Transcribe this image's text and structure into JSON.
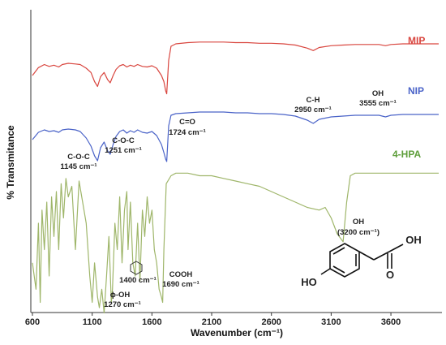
{
  "chart_data": {
    "type": "line",
    "xlabel": "Wavenumber (cm⁻¹)",
    "ylabel": "% Transmitance",
    "xlim": [
      600,
      4000
    ],
    "xticks": [
      600,
      1100,
      1600,
      2100,
      2600,
      3100,
      3600
    ],
    "grid": false,
    "series": [
      {
        "name": "MIP",
        "color": "#d9463f",
        "x": [
          600,
          650,
          700,
          740,
          780,
          820,
          850,
          900,
          960,
          1000,
          1050,
          1090,
          1120,
          1145,
          1170,
          1200,
          1230,
          1251,
          1275,
          1300,
          1330,
          1360,
          1390,
          1420,
          1450,
          1480,
          1520,
          1560,
          1600,
          1640,
          1680,
          1700,
          1715,
          1724,
          1740,
          1760,
          1800,
          1900,
          2000,
          2100,
          2200,
          2300,
          2400,
          2500,
          2600,
          2700,
          2800,
          2900,
          2950,
          3000,
          3100,
          3200,
          3300,
          3400,
          3500,
          3555,
          3600,
          3700,
          3800,
          3900,
          4000
        ],
        "values": [
          40,
          53,
          58,
          55,
          57,
          54,
          58,
          60,
          59,
          58,
          52,
          45,
          30,
          22,
          38,
          45,
          33,
          28,
          40,
          50,
          56,
          58,
          54,
          57,
          55,
          58,
          55,
          54,
          56,
          52,
          40,
          30,
          15,
          10,
          65,
          88,
          92,
          94,
          95,
          95,
          95,
          94,
          94,
          93,
          93,
          92,
          90,
          85,
          81,
          86,
          89,
          90,
          91,
          91,
          91,
          89,
          91,
          92,
          92,
          92,
          92
        ]
      },
      {
        "name": "NIP",
        "color": "#4a63c8",
        "x": [
          600,
          650,
          700,
          740,
          780,
          820,
          850,
          900,
          960,
          1000,
          1050,
          1090,
          1120,
          1145,
          1170,
          1200,
          1230,
          1251,
          1275,
          1300,
          1330,
          1360,
          1390,
          1420,
          1450,
          1480,
          1520,
          1560,
          1600,
          1640,
          1680,
          1700,
          1715,
          1724,
          1740,
          1760,
          1800,
          1900,
          2000,
          2100,
          2200,
          2300,
          2400,
          2500,
          2600,
          2700,
          2800,
          2900,
          2950,
          3000,
          3100,
          3200,
          3300,
          3400,
          3500,
          3555,
          3600,
          3700,
          3800,
          3900,
          4000
        ],
        "values": [
          28,
          37,
          40,
          38,
          39,
          37,
          40,
          41,
          40,
          38,
          30,
          20,
          8,
          2,
          18,
          25,
          14,
          10,
          22,
          32,
          38,
          40,
          36,
          39,
          37,
          40,
          37,
          36,
          38,
          33,
          22,
          12,
          4,
          1,
          45,
          58,
          60,
          61,
          62,
          62,
          62,
          61,
          61,
          60,
          60,
          59,
          57,
          52,
          48,
          53,
          56,
          57,
          58,
          58,
          58,
          56,
          58,
          59,
          59,
          59,
          59
        ]
      },
      {
        "name": "4-HPA",
        "color": "#9fb66a",
        "x": [
          600,
          630,
          650,
          665,
          680,
          700,
          720,
          740,
          760,
          780,
          800,
          820,
          840,
          860,
          880,
          900,
          930,
          960,
          990,
          1020,
          1050,
          1080,
          1100,
          1120,
          1145,
          1160,
          1180,
          1200,
          1220,
          1240,
          1260,
          1270,
          1290,
          1310,
          1330,
          1350,
          1370,
          1390,
          1400,
          1420,
          1440,
          1460,
          1480,
          1500,
          1520,
          1540,
          1560,
          1580,
          1600,
          1620,
          1640,
          1660,
          1680,
          1690,
          1700,
          1720,
          1760,
          1800,
          1900,
          2000,
          2100,
          2200,
          2300,
          2400,
          2500,
          2600,
          2700,
          2800,
          2900,
          3000,
          3050,
          3100,
          3150,
          3200,
          3230,
          3260,
          3300,
          3350,
          3400,
          3500,
          3600,
          3700,
          3800,
          3900,
          4000
        ],
        "values": [
          -35,
          -45,
          -20,
          -50,
          -15,
          -30,
          -12,
          -40,
          -10,
          -25,
          -8,
          -30,
          -5,
          -18,
          -3,
          -10,
          -6,
          -30,
          -4,
          -12,
          -20,
          -40,
          -50,
          -35,
          -48,
          -52,
          -45,
          -54,
          -40,
          -25,
          -50,
          -45,
          -20,
          -30,
          -10,
          -35,
          -15,
          -8,
          -30,
          -12,
          -35,
          -40,
          -20,
          -42,
          -15,
          -25,
          -10,
          -20,
          -15,
          -30,
          -35,
          -45,
          -48,
          -50,
          -30,
          -5,
          -2,
          -1,
          -1,
          -2,
          -2,
          -3,
          -4,
          -5,
          -6,
          -8,
          -10,
          -12,
          -14,
          -15,
          -14,
          -18,
          -24,
          -27,
          -12,
          -2,
          -1,
          -1,
          -1,
          -1,
          -1,
          -1,
          -1,
          -1,
          -1
        ]
      }
    ],
    "series_labels": {
      "MIP": "MIP",
      "NIP": "NIP",
      "4-HPA": "4-HPA"
    },
    "annotations": [
      {
        "text": "C-O-C",
        "unit": "1145 cm⁻¹"
      },
      {
        "text": "C-O-C",
        "unit": "1251 cm⁻¹"
      },
      {
        "text": "C=O",
        "unit": "1724 cm⁻¹"
      },
      {
        "text": "C-H",
        "unit": "2950 cm⁻¹"
      },
      {
        "text": "OH",
        "unit": "3555 cm⁻¹"
      },
      {
        "text": "OH",
        "unit": "(3200 cm⁻¹)"
      },
      {
        "text": "COOH",
        "unit": "1690 cm⁻¹"
      },
      {
        "text": "1400 cm⁻¹",
        "unit": ""
      },
      {
        "text": "ϕ-OH",
        "unit": "1270 cm⁻¹"
      }
    ],
    "structure_labels": {
      "ho": "HO",
      "oh": "OH",
      "o": "O"
    }
  }
}
